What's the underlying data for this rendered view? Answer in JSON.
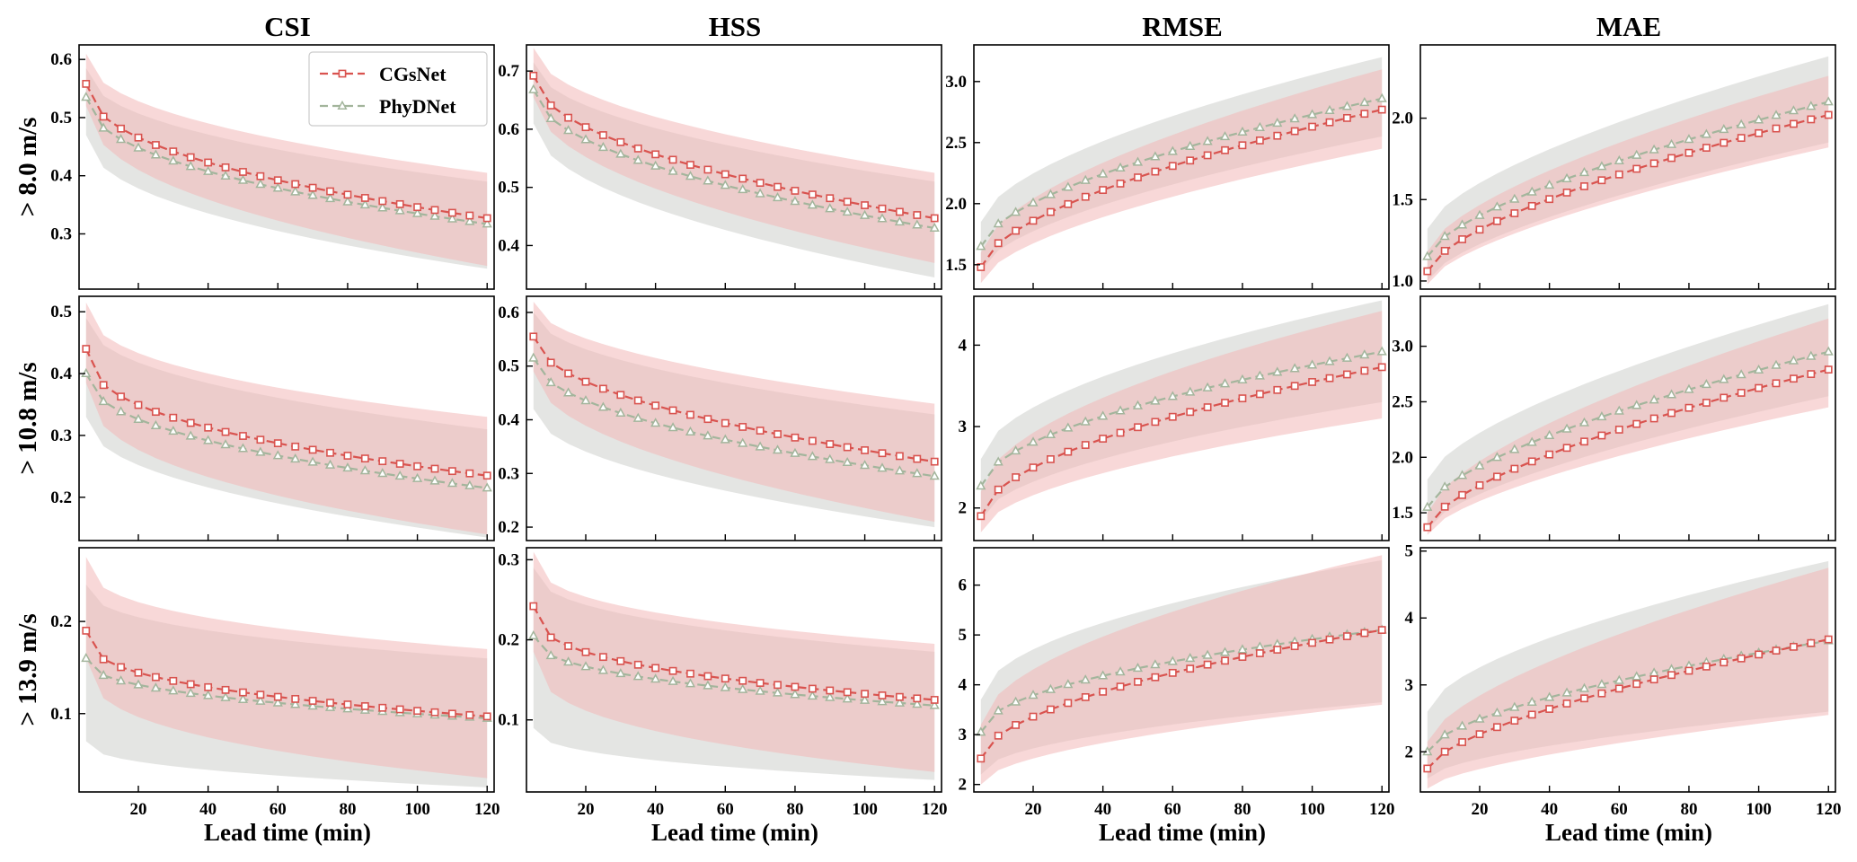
{
  "figure": {
    "column_titles": [
      "CSI",
      "HSS",
      "RMSE",
      "MAE"
    ],
    "row_labels": [
      "> 8.0 m/s",
      "> 10.8 m/s",
      "> 13.9 m/s"
    ],
    "xlabel": "Lead time (min)"
  },
  "colors": {
    "cgsnet": "#d9534f",
    "phydnet": "#a3b59c",
    "cgsnet_band": "#f2b8b8",
    "phydnet_band": "#c9ccc8"
  },
  "chart_data": [
    {
      "type": "line",
      "row": 0,
      "col": 0,
      "xlim": [
        3,
        122
      ],
      "ylim": [
        0.205,
        0.625
      ],
      "xticks": [
        20,
        40,
        60,
        80,
        100,
        120
      ],
      "yticks": [
        0.3,
        0.4,
        0.5,
        0.6
      ],
      "legend": {
        "placement": "top-right",
        "entries": [
          "CGsNet",
          "PhyDNet"
        ]
      },
      "series": [
        {
          "name": "CGsNet",
          "start": [
            5,
            0.558
          ],
          "end": [
            120,
            0.327
          ],
          "shape": 0.45,
          "band": [
            [
              0.52,
              0.61
            ],
            [
              0.245,
              0.405
            ]
          ]
        },
        {
          "name": "PhyDNet",
          "start": [
            5,
            0.535
          ],
          "end": [
            120,
            0.317
          ],
          "shape": 0.45,
          "band": [
            [
              0.47,
              0.585
            ],
            [
              0.24,
              0.39
            ]
          ]
        }
      ]
    },
    {
      "type": "line",
      "row": 0,
      "col": 1,
      "xlim": [
        3,
        122
      ],
      "ylim": [
        0.325,
        0.745
      ],
      "xticks": [
        20,
        40,
        60,
        80,
        100,
        120
      ],
      "yticks": [
        0.4,
        0.5,
        0.6,
        0.7
      ],
      "series": [
        {
          "name": "CGsNet",
          "start": [
            5,
            0.692
          ],
          "end": [
            120,
            0.447
          ],
          "shape": 0.5,
          "band": [
            [
              0.655,
              0.74
            ],
            [
              0.37,
              0.525
            ]
          ]
        },
        {
          "name": "PhyDNet",
          "start": [
            5,
            0.668
          ],
          "end": [
            120,
            0.43
          ],
          "shape": 0.5,
          "band": [
            [
              0.61,
              0.715
            ],
            [
              0.345,
              0.51
            ]
          ]
        }
      ]
    },
    {
      "type": "line",
      "row": 0,
      "col": 2,
      "xlim": [
        3,
        122
      ],
      "ylim": [
        1.3,
        3.3
      ],
      "xticks": [
        20,
        40,
        60,
        80,
        100,
        120
      ],
      "yticks": [
        1.5,
        2.0,
        2.5,
        3.0
      ],
      "series": [
        {
          "name": "CGsNet",
          "start": [
            5,
            1.48
          ],
          "end": [
            120,
            2.77
          ],
          "shape": 0.6,
          "band": [
            [
              1.35,
              1.6
            ],
            [
              2.45,
              3.1
            ]
          ]
        },
        {
          "name": "PhyDNet",
          "start": [
            5,
            1.65
          ],
          "end": [
            120,
            2.86
          ],
          "shape": 0.6,
          "band": [
            [
              1.45,
              1.85
            ],
            [
              2.55,
              3.2
            ]
          ]
        }
      ]
    },
    {
      "type": "line",
      "row": 0,
      "col": 3,
      "xlim": [
        3,
        122
      ],
      "ylim": [
        0.95,
        2.45
      ],
      "xticks": [
        20,
        40,
        60,
        80,
        100,
        120
      ],
      "yticks": [
        1.0,
        1.5,
        2.0
      ],
      "series": [
        {
          "name": "CGsNet",
          "start": [
            5,
            1.06
          ],
          "end": [
            120,
            2.02
          ],
          "shape": 0.65,
          "band": [
            [
              0.98,
              1.18
            ],
            [
              1.82,
              2.26
            ]
          ]
        },
        {
          "name": "PhyDNet",
          "start": [
            5,
            1.15
          ],
          "end": [
            120,
            2.1
          ],
          "shape": 0.65,
          "band": [
            [
              1.0,
              1.32
            ],
            [
              1.85,
              2.38
            ]
          ]
        }
      ]
    },
    {
      "type": "line",
      "row": 1,
      "col": 0,
      "xlim": [
        3,
        122
      ],
      "ylim": [
        0.13,
        0.525
      ],
      "xticks": [
        20,
        40,
        60,
        80,
        100,
        120
      ],
      "yticks": [
        0.2,
        0.3,
        0.4,
        0.5
      ],
      "series": [
        {
          "name": "CGsNet",
          "start": [
            5,
            0.44
          ],
          "end": [
            120,
            0.235
          ],
          "shape": 0.4,
          "band": [
            [
              0.385,
              0.515
            ],
            [
              0.14,
              0.33
            ]
          ]
        },
        {
          "name": "PhyDNet",
          "start": [
            5,
            0.4
          ],
          "end": [
            120,
            0.215
          ],
          "shape": 0.45,
          "band": [
            [
              0.33,
              0.49
            ],
            [
              0.135,
              0.31
            ]
          ]
        }
      ]
    },
    {
      "type": "line",
      "row": 1,
      "col": 1,
      "xlim": [
        3,
        122
      ],
      "ylim": [
        0.175,
        0.63
      ],
      "xticks": [
        20,
        40,
        60,
        80,
        100,
        120
      ],
      "yticks": [
        0.2,
        0.3,
        0.4,
        0.5,
        0.6
      ],
      "series": [
        {
          "name": "CGsNet",
          "start": [
            5,
            0.555
          ],
          "end": [
            120,
            0.322
          ],
          "shape": 0.5,
          "band": [
            [
              0.49,
              0.62
            ],
            [
              0.21,
              0.43
            ]
          ]
        },
        {
          "name": "PhyDNet",
          "start": [
            5,
            0.515
          ],
          "end": [
            120,
            0.295
          ],
          "shape": 0.5,
          "band": [
            [
              0.42,
              0.6
            ],
            [
              0.2,
              0.41
            ]
          ]
        }
      ]
    },
    {
      "type": "line",
      "row": 1,
      "col": 2,
      "xlim": [
        3,
        122
      ],
      "ylim": [
        1.6,
        4.6
      ],
      "xticks": [
        20,
        40,
        60,
        80,
        100,
        120
      ],
      "yticks": [
        2,
        3,
        4
      ],
      "series": [
        {
          "name": "CGsNet",
          "start": [
            5,
            1.9
          ],
          "end": [
            120,
            3.73
          ],
          "shape": 0.55,
          "band": [
            [
              1.7,
              2.2
            ],
            [
              3.1,
              4.42
            ]
          ]
        },
        {
          "name": "PhyDNet",
          "start": [
            5,
            2.27
          ],
          "end": [
            120,
            3.92
          ],
          "shape": 0.55,
          "band": [
            [
              1.85,
              2.6
            ],
            [
              3.3,
              4.55
            ]
          ]
        }
      ]
    },
    {
      "type": "line",
      "row": 1,
      "col": 3,
      "xlim": [
        3,
        122
      ],
      "ylim": [
        1.25,
        3.45
      ],
      "xticks": [
        20,
        40,
        60,
        80,
        100,
        120
      ],
      "yticks": [
        1.5,
        2.0,
        2.5,
        3.0
      ],
      "series": [
        {
          "name": "CGsNet",
          "start": [
            5,
            1.37
          ],
          "end": [
            120,
            2.79
          ],
          "shape": 0.65,
          "band": [
            [
              1.3,
              1.5
            ],
            [
              2.45,
              3.25
            ]
          ]
        },
        {
          "name": "PhyDNet",
          "start": [
            5,
            1.55
          ],
          "end": [
            120,
            2.95
          ],
          "shape": 0.65,
          "band": [
            [
              1.35,
              1.8
            ],
            [
              2.55,
              3.38
            ]
          ]
        }
      ]
    },
    {
      "type": "line",
      "row": 2,
      "col": 0,
      "xlim": [
        3,
        122
      ],
      "ylim": [
        0.015,
        0.28
      ],
      "xticks": [
        20,
        40,
        60,
        80,
        100,
        120
      ],
      "yticks": [
        0.1,
        0.2
      ],
      "series": [
        {
          "name": "CGsNet",
          "start": [
            5,
            0.19
          ],
          "end": [
            120,
            0.097
          ],
          "shape": 0.35,
          "band": [
            [
              0.16,
              0.27
            ],
            [
              0.03,
              0.17
            ]
          ]
        },
        {
          "name": "PhyDNet",
          "start": [
            5,
            0.16
          ],
          "end": [
            120,
            0.095
          ],
          "shape": 0.4,
          "band": [
            [
              0.07,
              0.24
            ],
            [
              0.02,
              0.16
            ]
          ]
        }
      ]
    },
    {
      "type": "line",
      "row": 2,
      "col": 1,
      "xlim": [
        3,
        122
      ],
      "ylim": [
        0.01,
        0.315
      ],
      "xticks": [
        20,
        40,
        60,
        80,
        100,
        120
      ],
      "yticks": [
        0.1,
        0.2,
        0.3
      ],
      "series": [
        {
          "name": "CGsNet",
          "start": [
            5,
            0.242
          ],
          "end": [
            120,
            0.125
          ],
          "shape": 0.35,
          "band": [
            [
              0.185,
              0.31
            ],
            [
              0.035,
              0.195
            ]
          ]
        },
        {
          "name": "PhyDNet",
          "start": [
            5,
            0.205
          ],
          "end": [
            120,
            0.118
          ],
          "shape": 0.4,
          "band": [
            [
              0.09,
              0.29
            ],
            [
              0.025,
              0.185
            ]
          ]
        }
      ]
    },
    {
      "type": "line",
      "row": 2,
      "col": 2,
      "xlim": [
        3,
        122
      ],
      "ylim": [
        1.85,
        6.75
      ],
      "xticks": [
        20,
        40,
        60,
        80,
        100,
        120
      ],
      "yticks": [
        2,
        3,
        4,
        5,
        6
      ],
      "series": [
        {
          "name": "CGsNet",
          "start": [
            5,
            2.52
          ],
          "end": [
            120,
            5.1
          ],
          "shape": 0.55,
          "band": [
            [
              2.0,
              3.2
            ],
            [
              3.6,
              6.6
            ]
          ]
        },
        {
          "name": "PhyDNet",
          "start": [
            5,
            3.05
          ],
          "end": [
            120,
            5.1
          ],
          "shape": 0.5,
          "band": [
            [
              2.2,
              3.7
            ],
            [
              3.65,
              6.5
            ]
          ]
        }
      ]
    },
    {
      "type": "line",
      "row": 2,
      "col": 3,
      "xlim": [
        3,
        122
      ],
      "ylim": [
        1.4,
        5.05
      ],
      "xticks": [
        20,
        40,
        60,
        80,
        100,
        120
      ],
      "yticks": [
        2,
        3,
        4,
        5
      ],
      "series": [
        {
          "name": "CGsNet",
          "start": [
            5,
            1.75
          ],
          "end": [
            120,
            3.68
          ],
          "shape": 0.65,
          "band": [
            [
              1.45,
              2.15
            ],
            [
              2.55,
              4.75
            ]
          ]
        },
        {
          "name": "PhyDNet",
          "start": [
            5,
            2.0
          ],
          "end": [
            120,
            3.66
          ],
          "shape": 0.6,
          "band": [
            [
              1.6,
              2.6
            ],
            [
              2.6,
              4.85
            ]
          ]
        }
      ]
    }
  ]
}
